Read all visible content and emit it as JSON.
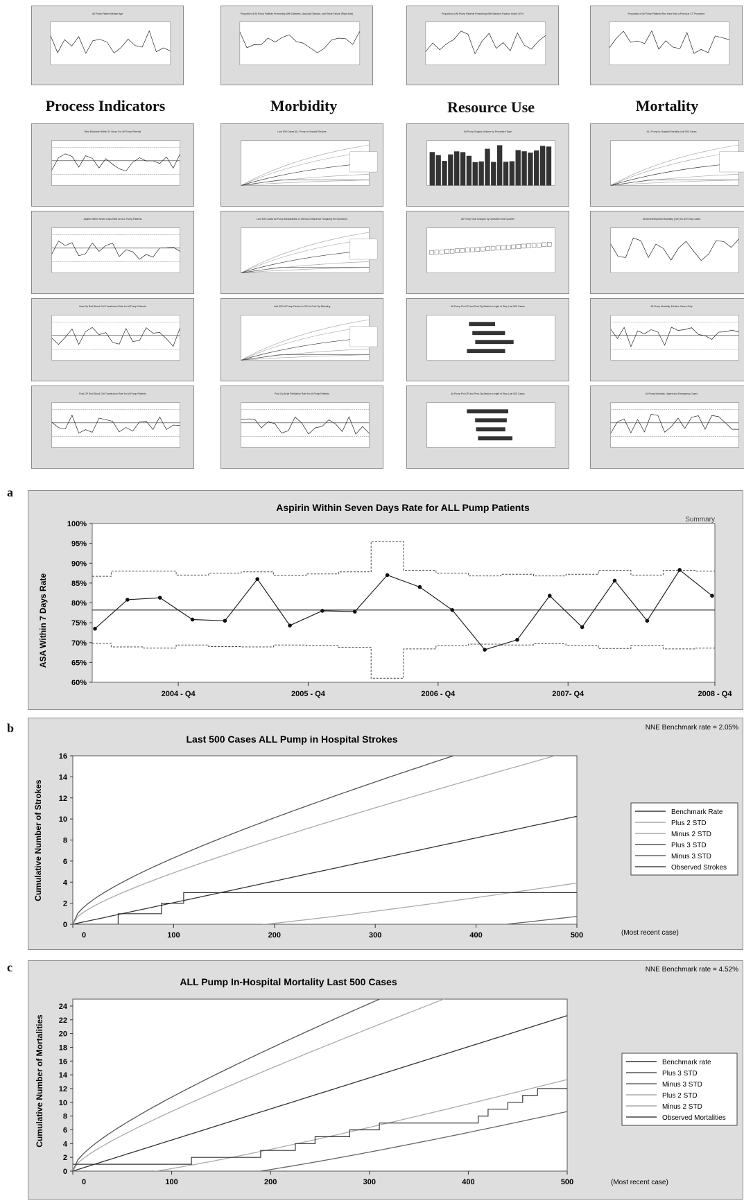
{
  "top_row": [
    {
      "title": "All Pump Patient Median Age"
    },
    {
      "title": "Proportion of All Pump Patients Presenting With Diabetes, Vascular Disease, and Renal Failure (Right Axis)"
    },
    {
      "title": "Proportion of All Pump Patients Presenting With Ejection Fraction Under 40 %"
    },
    {
      "title": "Proportion of All Pump Patients Who Have Had a Previous CT Procedure"
    }
  ],
  "categories": [
    {
      "label": "Process Indicators"
    },
    {
      "label": "Morbidity"
    },
    {
      "label": "Resource Use"
    },
    {
      "label": "Mortality"
    }
  ],
  "thumb_titles": [
    [
      "Beta Blockade Within 24 Hours For All Pump Patients",
      "Aspirin Within Seven Days Rate for ALL Pump Patients",
      "Intra-Op Red Blood Cell Transfusion Rate for All Pump Patients",
      "Post-OP Red Blood Cell Transfusion Rate for All Pump Patients"
    ],
    [
      "Last 500 Cases ALL Pump in Hospital Strokes",
      "Last 500 Cases All Pump Mediastinitis or Sternal Dehiscence Requiring Re-Operation",
      "Last 500 All Pump Return to OR for Post Op Bleeding",
      "Post Op Atrial Fibrillation Rate for All Pump Patients"
    ],
    [
      "All Pump Surgery Volume by Procedure Type",
      "All Pump Total Charges by Operation Year Quarter",
      "All Pump Pre-OP and Post-Op Median Length of Stay Last 500 Cases",
      "All Pump Pre-OP and Post-Op Median Length of Stay Last 500 Cases"
    ],
    [
      "ALL Pump In-Hospital Mortality Last 500 Cases",
      "Observed/Expected Mortality (O/E) for All Pump Cases",
      "All Pump Mortality, Elective Cases Only",
      "All Pump Mortality, Urgent and Emergency Cases"
    ]
  ],
  "panel_letters": {
    "a": "a",
    "b": "b",
    "c": "c"
  },
  "chart_data": [
    {
      "type": "line",
      "id": "a",
      "title": "Aspirin Within Seven Days Rate for ALL Pump Patients",
      "corner_label": "Summary",
      "ylabel": "ASA Within 7 Days Rate",
      "ylim": [
        60,
        100
      ],
      "yticks": [
        "60%",
        "65%",
        "70%",
        "75%",
        "80%",
        "85%",
        "90%",
        "95%",
        "100%"
      ],
      "xticks": [
        "2004 - Q4",
        "2005 - Q4",
        "2006 - Q4",
        "2007- Q4",
        "2008 - Q4"
      ],
      "center_line": 78.2,
      "series": [
        {
          "values": [
            73.5,
            80.8,
            81.3,
            75.8,
            75.5,
            86.0,
            74.3,
            78.0,
            77.8,
            87.0,
            84.0,
            78.2,
            68.2,
            70.7,
            81.8,
            73.9,
            85.6,
            75.5,
            88.3,
            81.8
          ]
        }
      ],
      "ucl": [
        86.7,
        88.0,
        88.0,
        87.0,
        87.5,
        87.8,
        86.9,
        87.3,
        87.8,
        95.5,
        88.2,
        87.5,
        86.8,
        87.2,
        86.8,
        87.2,
        88.2,
        87.0,
        88.2,
        88.0
      ],
      "lcl": [
        69.8,
        68.9,
        68.6,
        69.4,
        69.0,
        68.9,
        69.4,
        69.3,
        68.8,
        61.0,
        68.4,
        69.2,
        69.6,
        69.4,
        69.7,
        69.3,
        68.5,
        69.3,
        68.4,
        68.6
      ]
    },
    {
      "type": "line",
      "id": "b",
      "title": "Last 500 Cases ALL Pump in Hospital Strokes",
      "note": "NNE Benchmark rate = 2.05%",
      "ylabel": "Cumulative Number of Strokes",
      "xlabel_note": "(Most recent case)",
      "ylim": [
        0,
        16
      ],
      "xlim": [
        0,
        500
      ],
      "yticks": [
        0,
        2,
        4,
        6,
        8,
        10,
        12,
        14,
        16
      ],
      "xticks": [
        0,
        100,
        200,
        300,
        400,
        500
      ],
      "legend": [
        "Benchmark Rate",
        "Plus 2 STD",
        "Minus 2 STD",
        "Plus 3 STD",
        "Minus 3 STD",
        "Observed Strokes"
      ],
      "benchmark_rate": 0.0205,
      "observed_steps": [
        [
          0,
          0
        ],
        [
          45,
          1
        ],
        [
          88,
          2
        ],
        [
          110,
          3
        ],
        [
          500,
          3
        ]
      ]
    },
    {
      "type": "line",
      "id": "c",
      "title": "ALL Pump In-Hospital Mortality Last 500 Cases",
      "note": "NNE Benchmark rate = 4.52%",
      "ylabel": "Cumulative Number of Mortalities",
      "xlabel_note": "(Most recent case)",
      "ylim": [
        0,
        25
      ],
      "xlim": [
        0,
        500
      ],
      "yticks": [
        0,
        2,
        4,
        6,
        8,
        10,
        12,
        14,
        16,
        18,
        20,
        22,
        24
      ],
      "xticks": [
        0,
        100,
        200,
        300,
        400,
        500
      ],
      "legend": [
        "Benchmark rate",
        "Plus 3 STD",
        "Minus 3 STD",
        "Plus 2 STD",
        "Minus 2 STD",
        "Observed Mortalities"
      ],
      "benchmark_rate": 0.0452,
      "observed_steps": [
        [
          0,
          1
        ],
        [
          120,
          1
        ],
        [
          120,
          2
        ],
        [
          190,
          2
        ],
        [
          190,
          3
        ],
        [
          225,
          3
        ],
        [
          225,
          4
        ],
        [
          245,
          4
        ],
        [
          245,
          5
        ],
        [
          280,
          5
        ],
        [
          280,
          6
        ],
        [
          310,
          6
        ],
        [
          310,
          7
        ],
        [
          410,
          7
        ],
        [
          410,
          8
        ],
        [
          420,
          8
        ],
        [
          420,
          9
        ],
        [
          440,
          9
        ],
        [
          440,
          10
        ],
        [
          455,
          10
        ],
        [
          455,
          11
        ],
        [
          470,
          11
        ],
        [
          470,
          12
        ],
        [
          500,
          12
        ]
      ]
    }
  ]
}
